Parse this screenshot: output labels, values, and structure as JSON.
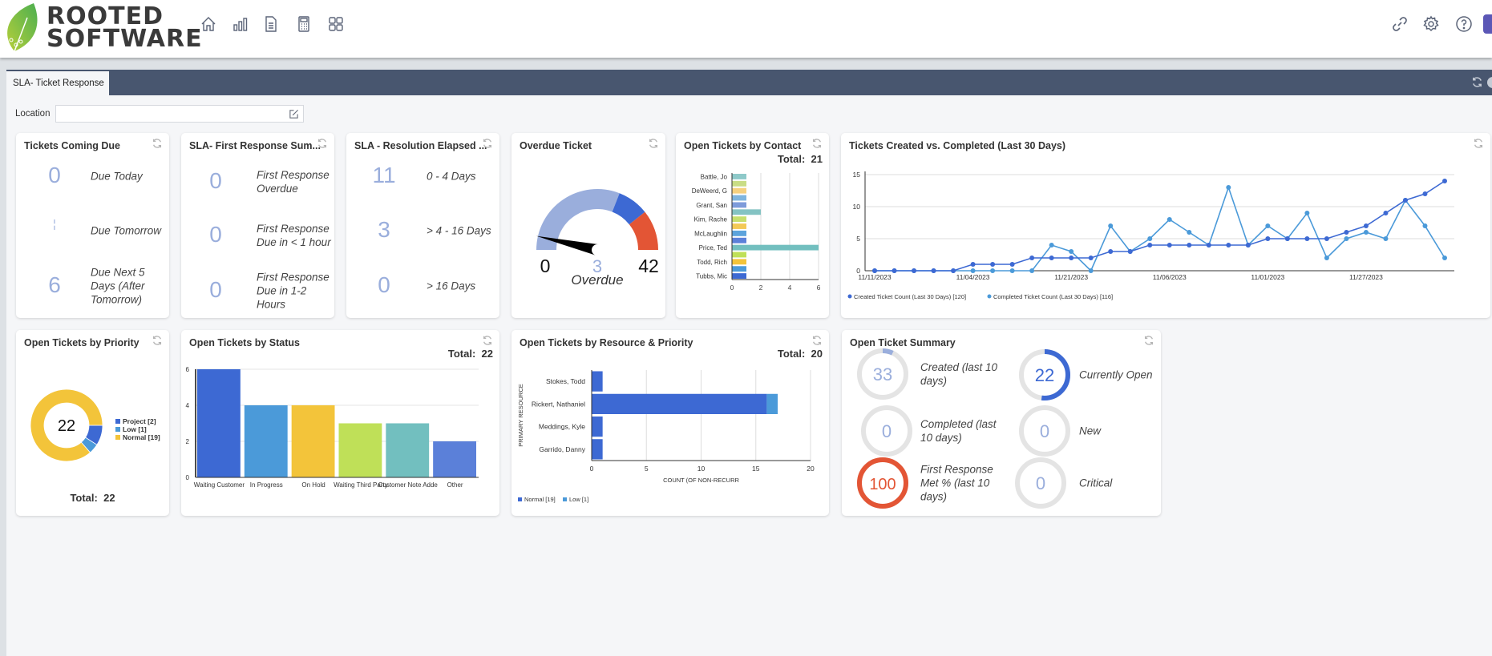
{
  "header": {
    "logo_line1": "ROOTED",
    "logo_line2": "SOFTWARE",
    "nav_icons": [
      "home-icon",
      "bar-chart-icon",
      "document-icon",
      "calculator-icon",
      "grid-icon"
    ],
    "right_icons": [
      "link-icon",
      "gear-icon",
      "help-icon"
    ]
  },
  "tab": {
    "label": "SLA- Ticket Response"
  },
  "filter": {
    "location_label": "Location",
    "location_value": ""
  },
  "coming_due": {
    "title": "Tickets Coming Due",
    "rows": [
      {
        "value": "0",
        "label": "Due Today"
      },
      {
        "value": "¦",
        "label": "Due Tomorrow"
      },
      {
        "value": "6",
        "label": "Due Next 5 Days (After Tomorrow)"
      }
    ]
  },
  "first_response": {
    "title": "SLA- First Response Sum...",
    "rows": [
      {
        "value": "0",
        "label": "First Response Overdue"
      },
      {
        "value": "0",
        "label": "First Response Due in < 1 hour"
      },
      {
        "value": "0",
        "label": "First Response Due in 1-2 Hours"
      }
    ]
  },
  "resolution": {
    "title": "SLA - Resolution Elapsed ...",
    "rows": [
      {
        "value": "11",
        "label": "0 - 4 Days"
      },
      {
        "value": "3",
        "label": "> 4 - 16 Days"
      },
      {
        "value": "0",
        "label": "> 16 Days"
      }
    ]
  },
  "overdue": {
    "title": "Overdue Ticket",
    "min": "0",
    "max": "42",
    "value": "3",
    "label": "Overdue",
    "bands": [
      {
        "from": 0,
        "to": 26,
        "color": "#9aaedc"
      },
      {
        "from": 26,
        "to": 33,
        "color": "#3d69d3"
      },
      {
        "from": 33,
        "to": 42,
        "color": "#e35535"
      }
    ]
  },
  "summary": {
    "title": "Open Ticket Summary",
    "items": [
      {
        "value": "33",
        "label": "Created (last 10 days)",
        "fill": 0.07,
        "color": "#9aaedc"
      },
      {
        "value": "22",
        "label": "Currently Open",
        "fill": 0.52,
        "color": "#3d69d3"
      },
      {
        "value": "0",
        "label": "Completed (last 10 days)",
        "fill": 0,
        "color": "#9aaedc"
      },
      {
        "value": "0",
        "label": "New",
        "fill": 0,
        "color": "#9aaedc"
      },
      {
        "value": "100",
        "label": "First Response Met % (last 10 days)",
        "fill": 1,
        "color": "#e35535"
      },
      {
        "value": "0",
        "label": "Critical",
        "fill": 0,
        "color": "#9aaedc"
      }
    ]
  },
  "chart_data": [
    {
      "id": "contact",
      "type": "bar",
      "orientation": "horizontal",
      "title": "Open Tickets by Contact",
      "total_label": "Total:",
      "total": "21",
      "categories": [
        "Battle, Jo",
        "",
        "DeWeerd, G",
        "",
        "Grant, San",
        "",
        "Kim, Rache",
        "",
        "McLaughlin",
        "",
        "Price, Ted",
        "",
        "Todd, Rich",
        "",
        "Tubbs, Mic"
      ],
      "values": [
        1,
        1,
        1,
        1,
        1,
        2,
        1,
        1,
        1,
        1,
        6,
        1,
        1,
        1,
        1
      ],
      "colors": [
        "#8ec9c9",
        "#c9dd85",
        "#f5d07f",
        "#7fb5de",
        "#7e9bda",
        "#84c3c3",
        "#c6df6e",
        "#f3c957",
        "#5ca3dc",
        "#5b80d9",
        "#72bfbf",
        "#bfe058",
        "#f3c43a",
        "#4b9ad9",
        "#3d69d3"
      ],
      "xticks": [
        "0",
        "2",
        "4",
        "6"
      ],
      "xlim": [
        0,
        6
      ],
      "grid": true
    },
    {
      "id": "created_completed",
      "type": "line",
      "title": "Tickets Created vs. Completed (Last 30 Days)",
      "xticks": [
        "11/11/2023",
        "11/04/2023",
        "11/21/2023",
        "11/06/2023",
        "11/01/2023",
        "11/27/2023"
      ],
      "yticks": [
        "0",
        "5",
        "10",
        "15"
      ],
      "ylim": [
        0,
        15
      ],
      "grid": true,
      "legend": "bottom-left",
      "series": [
        {
          "name": "Created Ticket Count (Last 30 Days) [120]",
          "color": "#3d69d3",
          "values": [
            0,
            0,
            0,
            0,
            0,
            1,
            1,
            1,
            2,
            2,
            2,
            2,
            3,
            3,
            4,
            4,
            4,
            4,
            4,
            4,
            5,
            5,
            5,
            5,
            6,
            7,
            9,
            11,
            12,
            14
          ]
        },
        {
          "name": "Completed Ticket Count (Last 30 Days) [116]",
          "color": "#4b9ad9",
          "values": [
            0,
            0,
            0,
            0,
            0,
            0,
            0,
            0,
            0,
            4,
            3,
            0,
            7,
            3,
            5,
            8,
            6,
            4,
            13,
            4,
            7,
            5,
            9,
            2,
            5,
            6,
            5,
            11,
            7,
            2
          ]
        }
      ]
    },
    {
      "id": "priority",
      "type": "pie",
      "donut": true,
      "title": "Open Tickets by Priority",
      "center_label": "22",
      "total_label": "Total:",
      "total": "22",
      "legend": "right",
      "slices": [
        {
          "name": "Project [2]",
          "value": 2,
          "color": "#3d69d3"
        },
        {
          "name": "Low [1]",
          "value": 1,
          "color": "#4b9ad9"
        },
        {
          "name": "Normal [19]",
          "value": 19,
          "color": "#f3c43a"
        }
      ]
    },
    {
      "id": "status",
      "type": "bar",
      "title": "Open Tickets by Status",
      "total_label": "Total:",
      "total": "22",
      "categories": [
        "Waiting Customer",
        "In Progress",
        "On Hold",
        "Waiting Third Party",
        "Customer Note Adde",
        "Other"
      ],
      "values": [
        6,
        4,
        4,
        3,
        3,
        2
      ],
      "colors": [
        "#3d69d3",
        "#4b9ad9",
        "#f3c43a",
        "#bfe058",
        "#72bfbf",
        "#5b80d9"
      ],
      "yticks": [
        "0",
        "2",
        "4",
        "6"
      ],
      "ylim": [
        0,
        6
      ],
      "grid": true
    },
    {
      "id": "resource",
      "type": "bar",
      "orientation": "horizontal",
      "stacked": true,
      "title": "Open Tickets by Resource & Priority",
      "total_label": "Total:",
      "total": "20",
      "ylabel": "PRIMARY RESOURCE",
      "xlabel": "COUNT (OF NON-RECURR",
      "categories": [
        "Stokes, Todd",
        "Rickert, Nathaniel",
        "Meddings, Kyle",
        "Garrido, Danny"
      ],
      "series": [
        {
          "name": "Normal [19]",
          "color": "#3d69d3",
          "values": [
            1,
            16,
            1,
            1
          ]
        },
        {
          "name": "Low [1]",
          "color": "#4b9ad9",
          "values": [
            0,
            1,
            0,
            0
          ]
        }
      ],
      "xticks": [
        "0",
        "5",
        "10",
        "15",
        "20"
      ],
      "xlim": [
        0,
        20
      ],
      "grid": true,
      "legend": "bottom-left"
    }
  ]
}
